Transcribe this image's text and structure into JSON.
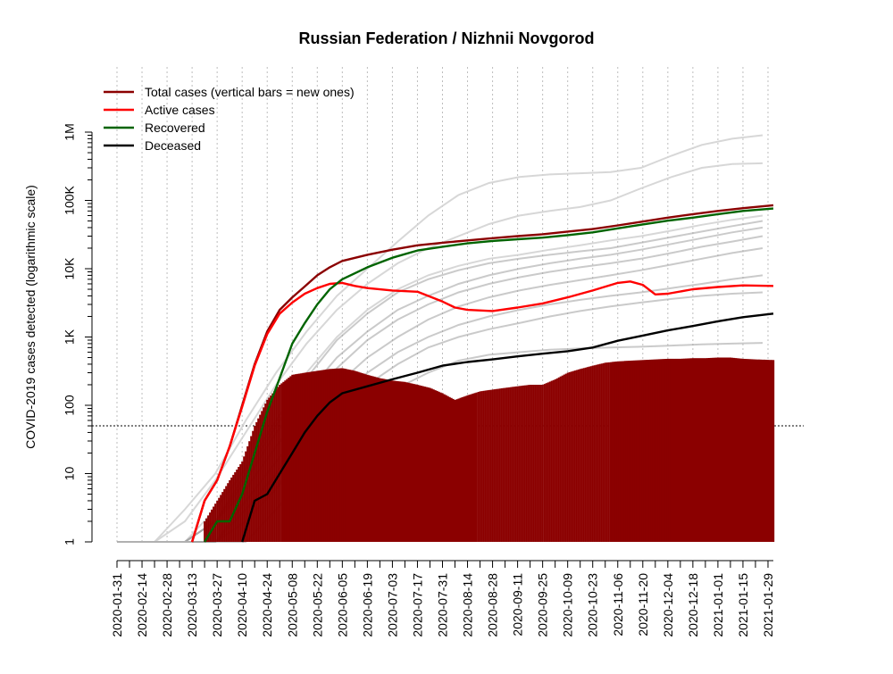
{
  "chart_data": {
    "type": "line",
    "title": "Russian Federation / Nizhnii Novgorod",
    "ylabel": "COVID-2019 cases detected (logarithmic scale)",
    "xlabel": "",
    "yscale": "log",
    "ylim": [
      1,
      1000000
    ],
    "xlim": [
      "2020-01-31",
      "2021-02-01"
    ],
    "grid": true,
    "legend_position": "top-left",
    "reference_line": 50,
    "y_ticks": [
      {
        "value": 1,
        "label": "1"
      },
      {
        "value": 10,
        "label": "10"
      },
      {
        "value": 100,
        "label": "100"
      },
      {
        "value": 1000,
        "label": "1K"
      },
      {
        "value": 10000,
        "label": "10K"
      },
      {
        "value": 100000,
        "label": "100K"
      },
      {
        "value": 1000000,
        "label": "1M"
      }
    ],
    "x_tick_labels": [
      "2020-01-31",
      "2020-02-14",
      "2020-02-28",
      "2020-03-13",
      "2020-03-27",
      "2020-04-10",
      "2020-04-24",
      "2020-05-08",
      "2020-05-22",
      "2020-06-05",
      "2020-06-19",
      "2020-07-03",
      "2020-07-17",
      "2020-07-31",
      "2020-08-14",
      "2020-08-28",
      "2020-09-11",
      "2020-09-25",
      "2020-10-09",
      "2020-10-23",
      "2020-11-06",
      "2020-11-20",
      "2020-12-04",
      "2020-12-18",
      "2021-01-01",
      "2021-01-15",
      "2021-01-29"
    ],
    "legend": [
      {
        "label": "Total cases (vertical bars = new ones)",
        "color": "#8b0000"
      },
      {
        "label": "Active cases",
        "color": "#ff0000"
      },
      {
        "label": "Recovered",
        "color": "#006400"
      },
      {
        "label": "Deceased",
        "color": "#000000"
      }
    ],
    "series": [
      {
        "name": "Total cases (vertical bars = new ones)",
        "color": "#8b0000",
        "x": [
          "2020-03-13",
          "2020-03-20",
          "2020-03-27",
          "2020-04-03",
          "2020-04-10",
          "2020-04-17",
          "2020-04-24",
          "2020-05-01",
          "2020-05-08",
          "2020-05-15",
          "2020-05-22",
          "2020-05-29",
          "2020-06-05",
          "2020-06-19",
          "2020-07-03",
          "2020-07-17",
          "2020-07-31",
          "2020-08-14",
          "2020-08-28",
          "2020-09-11",
          "2020-09-25",
          "2020-10-09",
          "2020-10-23",
          "2020-11-06",
          "2020-11-20",
          "2020-12-04",
          "2020-12-18",
          "2021-01-01",
          "2021-01-15",
          "2021-02-01"
        ],
        "values": [
          1,
          4,
          8,
          25,
          100,
          400,
          1200,
          2500,
          3800,
          5500,
          8000,
          10500,
          13000,
          16000,
          19000,
          22000,
          24000,
          26000,
          28000,
          30000,
          32000,
          35000,
          38000,
          43000,
          49000,
          56000,
          63000,
          70000,
          77000,
          85000
        ]
      },
      {
        "name": "Active cases",
        "color": "#ff0000",
        "x": [
          "2020-03-13",
          "2020-03-20",
          "2020-03-27",
          "2020-04-03",
          "2020-04-10",
          "2020-04-17",
          "2020-04-24",
          "2020-05-01",
          "2020-05-08",
          "2020-05-15",
          "2020-05-22",
          "2020-05-29",
          "2020-06-05",
          "2020-06-12",
          "2020-06-19",
          "2020-07-03",
          "2020-07-17",
          "2020-07-31",
          "2020-08-07",
          "2020-08-14",
          "2020-08-28",
          "2020-09-11",
          "2020-09-25",
          "2020-10-09",
          "2020-10-23",
          "2020-11-06",
          "2020-11-13",
          "2020-11-20",
          "2020-11-27",
          "2020-12-04",
          "2020-12-18",
          "2021-01-01",
          "2021-01-15",
          "2021-02-01"
        ],
        "values": [
          1,
          4,
          8,
          25,
          95,
          380,
          1100,
          2200,
          3200,
          4300,
          5200,
          6000,
          6200,
          5600,
          5200,
          4800,
          4600,
          3300,
          2700,
          2500,
          2400,
          2700,
          3100,
          3800,
          4800,
          6200,
          6500,
          5800,
          4200,
          4300,
          5000,
          5400,
          5700,
          5600
        ]
      },
      {
        "name": "Recovered",
        "color": "#006400",
        "x": [
          "2020-03-20",
          "2020-03-27",
          "2020-04-03",
          "2020-04-10",
          "2020-04-17",
          "2020-04-24",
          "2020-05-01",
          "2020-05-08",
          "2020-05-15",
          "2020-05-22",
          "2020-05-29",
          "2020-06-05",
          "2020-06-19",
          "2020-07-03",
          "2020-07-17",
          "2020-07-31",
          "2020-08-14",
          "2020-08-28",
          "2020-09-11",
          "2020-09-25",
          "2020-10-09",
          "2020-10-23",
          "2020-11-06",
          "2020-11-20",
          "2020-12-04",
          "2020-12-18",
          "2021-01-01",
          "2021-01-15",
          "2021-02-01"
        ],
        "values": [
          1,
          2,
          2,
          5,
          20,
          80,
          250,
          800,
          1600,
          3000,
          5000,
          7000,
          10500,
          14500,
          18500,
          21000,
          23500,
          25500,
          27000,
          28500,
          31000,
          34000,
          39000,
          44500,
          50500,
          56000,
          63000,
          70000,
          76000
        ]
      },
      {
        "name": "Deceased",
        "color": "#000000",
        "x": [
          "2020-04-10",
          "2020-04-17",
          "2020-04-24",
          "2020-05-01",
          "2020-05-08",
          "2020-05-15",
          "2020-05-22",
          "2020-05-29",
          "2020-06-05",
          "2020-06-19",
          "2020-07-03",
          "2020-07-17",
          "2020-07-31",
          "2020-08-14",
          "2020-08-28",
          "2020-09-11",
          "2020-09-25",
          "2020-10-09",
          "2020-10-23",
          "2020-11-06",
          "2020-11-20",
          "2020-12-04",
          "2020-12-18",
          "2021-01-01",
          "2021-01-15",
          "2021-02-01"
        ],
        "values": [
          1,
          4,
          5,
          10,
          20,
          40,
          70,
          110,
          150,
          190,
          240,
          300,
          380,
          430,
          470,
          520,
          570,
          620,
          700,
          880,
          1050,
          1250,
          1450,
          1700,
          1950,
          2200
        ]
      }
    ],
    "new_cases_bars": {
      "name": "new cases",
      "color": "#8b0000",
      "x": [
        "2020-03-20",
        "2020-03-27",
        "2020-04-03",
        "2020-04-10",
        "2020-04-17",
        "2020-04-24",
        "2020-05-01",
        "2020-05-08",
        "2020-05-15",
        "2020-05-22",
        "2020-05-29",
        "2020-06-05",
        "2020-06-12",
        "2020-06-19",
        "2020-06-26",
        "2020-07-03",
        "2020-07-10",
        "2020-07-17",
        "2020-07-24",
        "2020-07-31",
        "2020-08-07",
        "2020-08-14",
        "2020-08-21",
        "2020-08-28",
        "2020-09-04",
        "2020-09-11",
        "2020-09-18",
        "2020-09-25",
        "2020-10-02",
        "2020-10-09",
        "2020-10-16",
        "2020-10-23",
        "2020-10-30",
        "2020-11-06",
        "2020-11-13",
        "2020-11-20",
        "2020-11-27",
        "2020-12-04",
        "2020-12-11",
        "2020-12-18",
        "2020-12-25",
        "2021-01-01",
        "2021-01-08",
        "2021-01-15",
        "2021-01-22",
        "2021-02-01"
      ],
      "values": [
        2,
        4,
        8,
        15,
        50,
        120,
        200,
        280,
        300,
        320,
        340,
        350,
        320,
        280,
        250,
        230,
        220,
        200,
        180,
        150,
        120,
        140,
        160,
        170,
        180,
        190,
        200,
        200,
        240,
        300,
        340,
        380,
        420,
        440,
        450,
        460,
        470,
        480,
        480,
        490,
        490,
        500,
        500,
        480,
        470,
        460
      ]
    },
    "background_series_note": "",
    "background_series": [
      {
        "values": [
          1,
          3,
          10,
          60,
          300,
          1200,
          4000,
          10000,
          25000,
          60000,
          120000,
          180000,
          220000,
          240000,
          250000,
          260000,
          300000,
          450000,
          650000,
          800000,
          900000
        ]
      },
      {
        "values": [
          1,
          2,
          8,
          40,
          200,
          800,
          2500,
          6000,
          12000,
          20000,
          30000,
          45000,
          60000,
          70000,
          80000,
          100000,
          150000,
          220000,
          300000,
          340000,
          350000
        ]
      },
      {
        "values": [
          1,
          1,
          3,
          12,
          60,
          300,
          1000,
          2500,
          5000,
          8000,
          11000,
          14000,
          16000,
          19000,
          22000,
          26000,
          30000,
          36000,
          44000,
          52000,
          60000
        ]
      },
      {
        "values": [
          1,
          1,
          2,
          8,
          40,
          150,
          500,
          1200,
          2500,
          4000,
          6000,
          8000,
          10000,
          12000,
          14000,
          16000,
          19000,
          23000,
          28000,
          34000,
          40000
        ]
      },
      {
        "values": [
          1,
          1,
          2,
          6,
          25,
          100,
          350,
          900,
          1800,
          3000,
          4500,
          6000,
          7500,
          9000,
          10500,
          12000,
          14000,
          17000,
          21000,
          25000,
          30000
        ]
      },
      {
        "values": [
          1,
          1,
          1,
          4,
          15,
          60,
          200,
          500,
          1000,
          1800,
          2800,
          3800,
          4800,
          5800,
          6800,
          8000,
          9500,
          11500,
          14000,
          17000,
          20000
        ]
      },
      {
        "values": [
          1,
          1,
          1,
          3,
          10,
          40,
          120,
          300,
          600,
          1000,
          1500,
          2000,
          2500,
          3000,
          3500,
          4000,
          4500,
          5200,
          6000,
          7000,
          8000
        ]
      },
      {
        "values": [
          1,
          1,
          1,
          2,
          6,
          25,
          80,
          200,
          400,
          700,
          1000,
          1300,
          1600,
          2000,
          2400,
          2800,
          3200,
          3600,
          4000,
          4300,
          4500
        ]
      },
      {
        "values": [
          1,
          1,
          1,
          1,
          3,
          10,
          35,
          90,
          180,
          300,
          450,
          550,
          600,
          650,
          680,
          700,
          720,
          750,
          780,
          800,
          820
        ]
      },
      {
        "values": [
          1,
          1,
          2,
          10,
          50,
          250,
          900,
          2200,
          4500,
          7000,
          9500,
          12000,
          14000,
          16000,
          18000,
          20000,
          24000,
          29000,
          35000,
          42000,
          50000
        ]
      }
    ]
  }
}
